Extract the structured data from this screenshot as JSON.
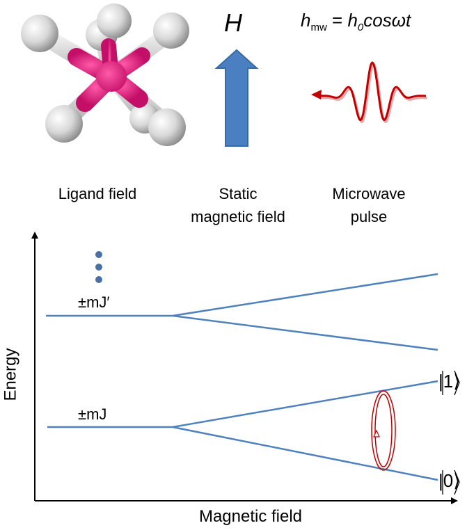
{
  "header": {
    "field_symbol": "H",
    "equation": {
      "lhs_var": "h",
      "lhs_sub": "mw",
      "equals": "=",
      "amp_var": "h",
      "amp_sub": "0",
      "rhs": "cosωt"
    }
  },
  "panels": [
    {
      "label_lines": [
        "Ligand field"
      ]
    },
    {
      "label_lines": [
        "Static",
        "magnetic field"
      ]
    },
    {
      "label_lines": [
        "Microwave",
        "pulse"
      ]
    }
  ],
  "diagram": {
    "y_axis_label": "Energy",
    "x_axis_label": "Magnetic field",
    "upper_level_label": "±mJ′",
    "lower_level_label": "±mJ",
    "state_top": "|1⟩",
    "state_bottom": "|0⟩"
  },
  "colors": {
    "molecule_center": "#e0177a",
    "ligand": "#d9d9d9",
    "arrow": "#4a7fc1",
    "energy_lines": "#4f81bd",
    "pulse": "#c00000"
  }
}
